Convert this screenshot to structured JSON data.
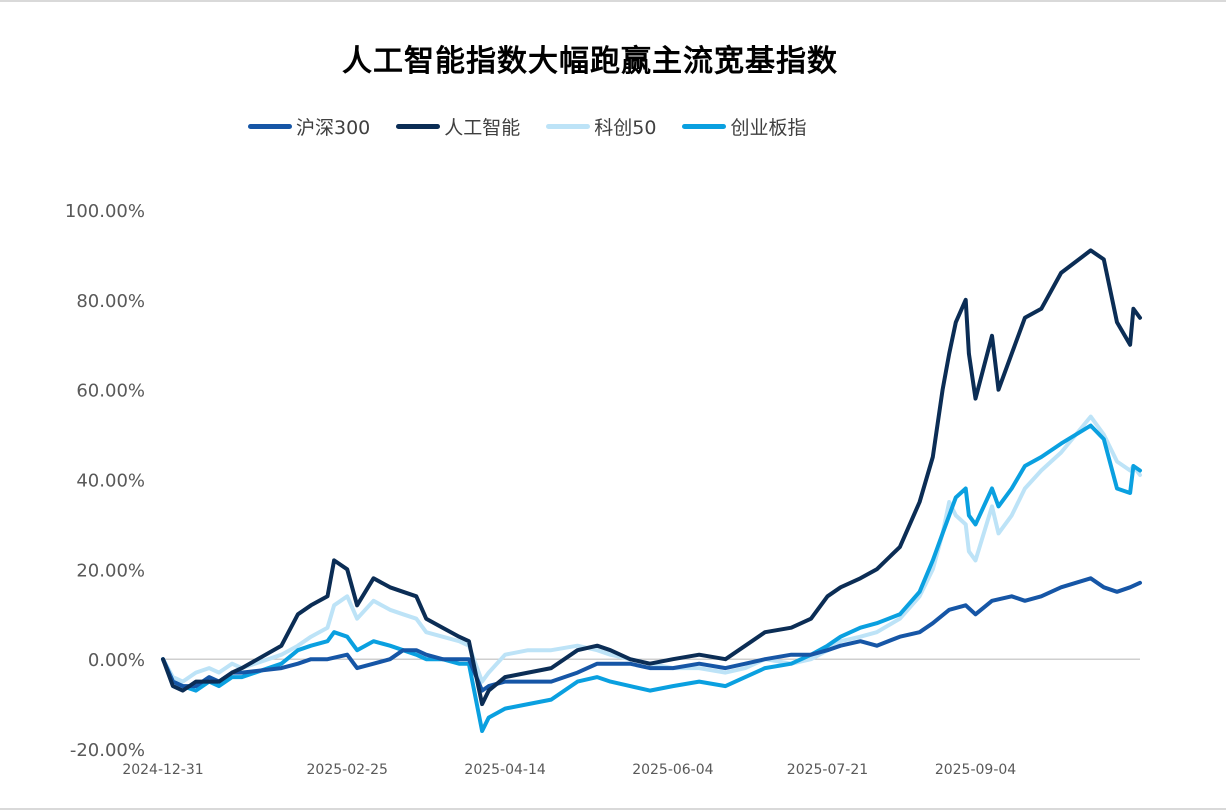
{
  "chart_data": {
    "type": "line",
    "title": "人工智能指数大幅跑赢主流宽基指数",
    "xlabel": "",
    "ylabel": "",
    "ylim": [
      -20,
      100
    ],
    "y_ticks": [
      "100.00%",
      "80.00%",
      "60.00%",
      "40.00%",
      "20.00%",
      "0.00%",
      "-20.00%"
    ],
    "y_tick_values": [
      100,
      80,
      60,
      40,
      20,
      0,
      -20
    ],
    "x_ticks": [
      "2024-12-31",
      "2025-02-25",
      "2025-04-14",
      "2025-06-04",
      "2025-07-21",
      "2025-09-04"
    ],
    "x_range": [
      "2024-12-31",
      "2025-10-24"
    ],
    "grid": false,
    "legend_position": "top",
    "series": [
      {
        "name": "沪深300",
        "color": "#1656a6",
        "points": [
          [
            "2024-12-31",
            0
          ],
          [
            "2025-01-03",
            -5
          ],
          [
            "2025-01-06",
            -6
          ],
          [
            "2025-01-10",
            -6
          ],
          [
            "2025-01-14",
            -4
          ],
          [
            "2025-01-17",
            -5
          ],
          [
            "2025-01-21",
            -3
          ],
          [
            "2025-01-24",
            -3
          ],
          [
            "2025-02-05",
            -2
          ],
          [
            "2025-02-10",
            -1
          ],
          [
            "2025-02-14",
            0
          ],
          [
            "2025-02-19",
            0
          ],
          [
            "2025-02-25",
            1
          ],
          [
            "2025-02-28",
            -2
          ],
          [
            "2025-03-05",
            -1
          ],
          [
            "2025-03-10",
            0
          ],
          [
            "2025-03-14",
            2
          ],
          [
            "2025-03-18",
            2
          ],
          [
            "2025-03-21",
            1
          ],
          [
            "2025-03-26",
            0
          ],
          [
            "2025-03-31",
            0
          ],
          [
            "2025-04-03",
            0
          ],
          [
            "2025-04-07",
            -7
          ],
          [
            "2025-04-09",
            -6
          ],
          [
            "2025-04-14",
            -5
          ],
          [
            "2025-04-21",
            -5
          ],
          [
            "2025-04-28",
            -5
          ],
          [
            "2025-05-06",
            -3
          ],
          [
            "2025-05-12",
            -1
          ],
          [
            "2025-05-16",
            -1
          ],
          [
            "2025-05-22",
            -1
          ],
          [
            "2025-05-28",
            -2
          ],
          [
            "2025-06-04",
            -2
          ],
          [
            "2025-06-12",
            -1
          ],
          [
            "2025-06-20",
            -2
          ],
          [
            "2025-06-26",
            -1
          ],
          [
            "2025-07-02",
            0
          ],
          [
            "2025-07-10",
            1
          ],
          [
            "2025-07-16",
            1
          ],
          [
            "2025-07-21",
            2
          ],
          [
            "2025-07-25",
            3
          ],
          [
            "2025-07-31",
            4
          ],
          [
            "2025-08-05",
            3
          ],
          [
            "2025-08-12",
            5
          ],
          [
            "2025-08-18",
            6
          ],
          [
            "2025-08-22",
            8
          ],
          [
            "2025-08-27",
            11
          ],
          [
            "2025-09-01",
            12
          ],
          [
            "2025-09-04",
            10
          ],
          [
            "2025-09-09",
            13
          ],
          [
            "2025-09-15",
            14
          ],
          [
            "2025-09-19",
            13
          ],
          [
            "2025-09-24",
            14
          ],
          [
            "2025-09-30",
            16
          ],
          [
            "2025-10-09",
            18
          ],
          [
            "2025-10-13",
            16
          ],
          [
            "2025-10-17",
            15
          ],
          [
            "2025-10-21",
            16
          ],
          [
            "2025-10-24",
            17
          ]
        ]
      },
      {
        "name": "人工智能",
        "color": "#0b2d55",
        "points": [
          [
            "2024-12-31",
            0
          ],
          [
            "2025-01-03",
            -6
          ],
          [
            "2025-01-06",
            -7
          ],
          [
            "2025-01-10",
            -5
          ],
          [
            "2025-01-14",
            -5
          ],
          [
            "2025-01-17",
            -5
          ],
          [
            "2025-01-21",
            -3
          ],
          [
            "2025-01-24",
            -2
          ],
          [
            "2025-02-05",
            3
          ],
          [
            "2025-02-10",
            10
          ],
          [
            "2025-02-14",
            12
          ],
          [
            "2025-02-19",
            14
          ],
          [
            "2025-02-21",
            22
          ],
          [
            "2025-02-25",
            20
          ],
          [
            "2025-02-28",
            12
          ],
          [
            "2025-03-05",
            18
          ],
          [
            "2025-03-10",
            16
          ],
          [
            "2025-03-14",
            15
          ],
          [
            "2025-03-18",
            14
          ],
          [
            "2025-03-21",
            9
          ],
          [
            "2025-03-26",
            7
          ],
          [
            "2025-03-31",
            5
          ],
          [
            "2025-04-03",
            4
          ],
          [
            "2025-04-07",
            -10
          ],
          [
            "2025-04-09",
            -7
          ],
          [
            "2025-04-14",
            -4
          ],
          [
            "2025-04-21",
            -3
          ],
          [
            "2025-04-28",
            -2
          ],
          [
            "2025-05-06",
            2
          ],
          [
            "2025-05-12",
            3
          ],
          [
            "2025-05-16",
            2
          ],
          [
            "2025-05-22",
            0
          ],
          [
            "2025-05-28",
            -1
          ],
          [
            "2025-06-04",
            0
          ],
          [
            "2025-06-12",
            1
          ],
          [
            "2025-06-20",
            0
          ],
          [
            "2025-06-26",
            3
          ],
          [
            "2025-07-02",
            6
          ],
          [
            "2025-07-10",
            7
          ],
          [
            "2025-07-16",
            9
          ],
          [
            "2025-07-21",
            14
          ],
          [
            "2025-07-25",
            16
          ],
          [
            "2025-07-31",
            18
          ],
          [
            "2025-08-05",
            20
          ],
          [
            "2025-08-12",
            25
          ],
          [
            "2025-08-18",
            35
          ],
          [
            "2025-08-22",
            45
          ],
          [
            "2025-08-25",
            60
          ],
          [
            "2025-08-27",
            68
          ],
          [
            "2025-08-29",
            75
          ],
          [
            "2025-09-01",
            80
          ],
          [
            "2025-09-02",
            68
          ],
          [
            "2025-09-04",
            58
          ],
          [
            "2025-09-09",
            72
          ],
          [
            "2025-09-11",
            60
          ],
          [
            "2025-09-15",
            68
          ],
          [
            "2025-09-19",
            76
          ],
          [
            "2025-09-24",
            78
          ],
          [
            "2025-09-30",
            86
          ],
          [
            "2025-10-09",
            91
          ],
          [
            "2025-10-13",
            89
          ],
          [
            "2025-10-17",
            75
          ],
          [
            "2025-10-21",
            70
          ],
          [
            "2025-10-22",
            78
          ],
          [
            "2025-10-24",
            76
          ]
        ]
      },
      {
        "name": "科创50",
        "color": "#bde3f7",
        "points": [
          [
            "2024-12-31",
            0
          ],
          [
            "2025-01-03",
            -4
          ],
          [
            "2025-01-06",
            -5
          ],
          [
            "2025-01-10",
            -3
          ],
          [
            "2025-01-14",
            -2
          ],
          [
            "2025-01-17",
            -3
          ],
          [
            "2025-01-21",
            -1
          ],
          [
            "2025-01-24",
            -2
          ],
          [
            "2025-02-05",
            1
          ],
          [
            "2025-02-10",
            3
          ],
          [
            "2025-02-14",
            5
          ],
          [
            "2025-02-19",
            7
          ],
          [
            "2025-02-21",
            12
          ],
          [
            "2025-02-25",
            14
          ],
          [
            "2025-02-28",
            9
          ],
          [
            "2025-03-05",
            13
          ],
          [
            "2025-03-10",
            11
          ],
          [
            "2025-03-14",
            10
          ],
          [
            "2025-03-18",
            9
          ],
          [
            "2025-03-21",
            6
          ],
          [
            "2025-03-26",
            5
          ],
          [
            "2025-03-31",
            4
          ],
          [
            "2025-04-03",
            3
          ],
          [
            "2025-04-07",
            -5
          ],
          [
            "2025-04-09",
            -3
          ],
          [
            "2025-04-14",
            1
          ],
          [
            "2025-04-21",
            2
          ],
          [
            "2025-04-28",
            2
          ],
          [
            "2025-05-06",
            3
          ],
          [
            "2025-05-12",
            2
          ],
          [
            "2025-05-16",
            1
          ],
          [
            "2025-05-22",
            0
          ],
          [
            "2025-05-28",
            -1
          ],
          [
            "2025-06-04",
            -2
          ],
          [
            "2025-06-12",
            -2
          ],
          [
            "2025-06-20",
            -3
          ],
          [
            "2025-06-26",
            -2
          ],
          [
            "2025-07-02",
            0
          ],
          [
            "2025-07-10",
            -1
          ],
          [
            "2025-07-16",
            0
          ],
          [
            "2025-07-21",
            2
          ],
          [
            "2025-07-25",
            4
          ],
          [
            "2025-07-31",
            5
          ],
          [
            "2025-08-05",
            6
          ],
          [
            "2025-08-12",
            9
          ],
          [
            "2025-08-18",
            14
          ],
          [
            "2025-08-22",
            20
          ],
          [
            "2025-08-25",
            28
          ],
          [
            "2025-08-27",
            35
          ],
          [
            "2025-08-29",
            32
          ],
          [
            "2025-09-01",
            30
          ],
          [
            "2025-09-02",
            24
          ],
          [
            "2025-09-04",
            22
          ],
          [
            "2025-09-09",
            34
          ],
          [
            "2025-09-11",
            28
          ],
          [
            "2025-09-15",
            32
          ],
          [
            "2025-09-19",
            38
          ],
          [
            "2025-09-24",
            42
          ],
          [
            "2025-09-30",
            46
          ],
          [
            "2025-10-09",
            54
          ],
          [
            "2025-10-13",
            50
          ],
          [
            "2025-10-17",
            44
          ],
          [
            "2025-10-21",
            42
          ],
          [
            "2025-10-22",
            43
          ],
          [
            "2025-10-24",
            41
          ]
        ]
      },
      {
        "name": "创业板指",
        "color": "#0aa0e0",
        "points": [
          [
            "2024-12-31",
            0
          ],
          [
            "2025-01-03",
            -5
          ],
          [
            "2025-01-06",
            -6
          ],
          [
            "2025-01-10",
            -7
          ],
          [
            "2025-01-14",
            -5
          ],
          [
            "2025-01-17",
            -6
          ],
          [
            "2025-01-21",
            -4
          ],
          [
            "2025-01-24",
            -4
          ],
          [
            "2025-02-05",
            -1
          ],
          [
            "2025-02-10",
            2
          ],
          [
            "2025-02-14",
            3
          ],
          [
            "2025-02-19",
            4
          ],
          [
            "2025-02-21",
            6
          ],
          [
            "2025-02-25",
            5
          ],
          [
            "2025-02-28",
            2
          ],
          [
            "2025-03-05",
            4
          ],
          [
            "2025-03-10",
            3
          ],
          [
            "2025-03-14",
            2
          ],
          [
            "2025-03-18",
            1
          ],
          [
            "2025-03-21",
            0
          ],
          [
            "2025-03-26",
            0
          ],
          [
            "2025-03-31",
            -1
          ],
          [
            "2025-04-03",
            -1
          ],
          [
            "2025-04-07",
            -16
          ],
          [
            "2025-04-09",
            -13
          ],
          [
            "2025-04-14",
            -11
          ],
          [
            "2025-04-21",
            -10
          ],
          [
            "2025-04-28",
            -9
          ],
          [
            "2025-05-06",
            -5
          ],
          [
            "2025-05-12",
            -4
          ],
          [
            "2025-05-16",
            -5
          ],
          [
            "2025-05-22",
            -6
          ],
          [
            "2025-05-28",
            -7
          ],
          [
            "2025-06-04",
            -6
          ],
          [
            "2025-06-12",
            -5
          ],
          [
            "2025-06-20",
            -6
          ],
          [
            "2025-06-26",
            -4
          ],
          [
            "2025-07-02",
            -2
          ],
          [
            "2025-07-10",
            -1
          ],
          [
            "2025-07-16",
            1
          ],
          [
            "2025-07-21",
            3
          ],
          [
            "2025-07-25",
            5
          ],
          [
            "2025-07-31",
            7
          ],
          [
            "2025-08-05",
            8
          ],
          [
            "2025-08-12",
            10
          ],
          [
            "2025-08-18",
            15
          ],
          [
            "2025-08-22",
            22
          ],
          [
            "2025-08-25",
            28
          ],
          [
            "2025-08-27",
            32
          ],
          [
            "2025-08-29",
            36
          ],
          [
            "2025-09-01",
            38
          ],
          [
            "2025-09-02",
            32
          ],
          [
            "2025-09-04",
            30
          ],
          [
            "2025-09-09",
            38
          ],
          [
            "2025-09-11",
            34
          ],
          [
            "2025-09-15",
            38
          ],
          [
            "2025-09-19",
            43
          ],
          [
            "2025-09-24",
            45
          ],
          [
            "2025-09-30",
            48
          ],
          [
            "2025-10-09",
            52
          ],
          [
            "2025-10-13",
            49
          ],
          [
            "2025-10-17",
            38
          ],
          [
            "2025-10-21",
            37
          ],
          [
            "2025-10-22",
            43
          ],
          [
            "2025-10-24",
            42
          ]
        ]
      }
    ]
  }
}
